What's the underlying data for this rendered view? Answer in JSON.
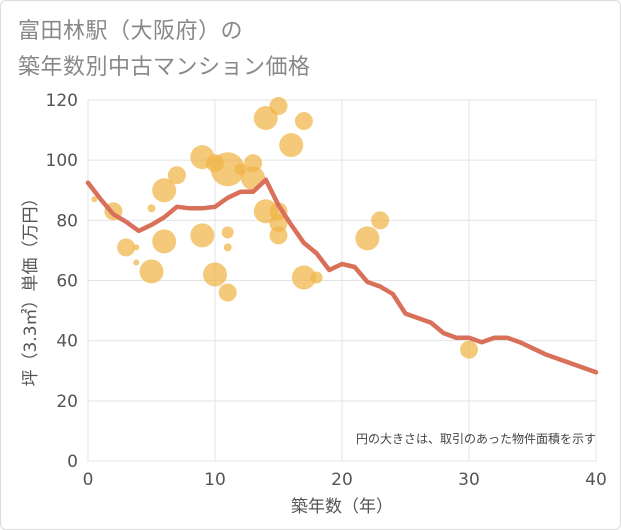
{
  "header": {
    "title_line1": "富田林駅（大阪府）の",
    "title_line2": "築年数別中古マンション価格"
  },
  "chart_data": {
    "type": "scatter",
    "xlabel": "築年数（年）",
    "ylabel": "坪（3.3㎡）単価（万円）",
    "xlim": [
      0,
      40
    ],
    "ylim": [
      0,
      120
    ],
    "x_ticks": [
      0,
      10,
      20,
      30,
      40
    ],
    "y_ticks": [
      0,
      20,
      40,
      60,
      80,
      100,
      120
    ],
    "grid": true,
    "note": "円の大きさは、取引のあった物件面積を示す",
    "bubble_color": "#f0b445",
    "line_color": "#d9705a",
    "bubbles": [
      {
        "x": 0.5,
        "y": 87,
        "s": 3
      },
      {
        "x": 2,
        "y": 83,
        "s": 9
      },
      {
        "x": 3,
        "y": 71,
        "s": 9
      },
      {
        "x": 3.8,
        "y": 71,
        "s": 3
      },
      {
        "x": 3.8,
        "y": 66,
        "s": 3
      },
      {
        "x": 5,
        "y": 84,
        "s": 4
      },
      {
        "x": 5,
        "y": 63,
        "s": 12
      },
      {
        "x": 6,
        "y": 90,
        "s": 12
      },
      {
        "x": 6,
        "y": 73,
        "s": 12
      },
      {
        "x": 7,
        "y": 95,
        "s": 9
      },
      {
        "x": 9,
        "y": 101,
        "s": 12
      },
      {
        "x": 9,
        "y": 75,
        "s": 12
      },
      {
        "x": 10,
        "y": 99,
        "s": 9
      },
      {
        "x": 10,
        "y": 62,
        "s": 12
      },
      {
        "x": 11,
        "y": 97,
        "s": 17
      },
      {
        "x": 11,
        "y": 76,
        "s": 6
      },
      {
        "x": 11,
        "y": 71,
        "s": 4
      },
      {
        "x": 11,
        "y": 56,
        "s": 9
      },
      {
        "x": 12,
        "y": 97,
        "s": 6
      },
      {
        "x": 13,
        "y": 99,
        "s": 9
      },
      {
        "x": 13,
        "y": 94,
        "s": 12
      },
      {
        "x": 14,
        "y": 114,
        "s": 12
      },
      {
        "x": 14,
        "y": 83,
        "s": 12
      },
      {
        "x": 15,
        "y": 118,
        "s": 9
      },
      {
        "x": 15,
        "y": 83,
        "s": 9
      },
      {
        "x": 15,
        "y": 79,
        "s": 9
      },
      {
        "x": 15,
        "y": 75,
        "s": 9
      },
      {
        "x": 16,
        "y": 105,
        "s": 12
      },
      {
        "x": 17,
        "y": 113,
        "s": 9
      },
      {
        "x": 17,
        "y": 61,
        "s": 12
      },
      {
        "x": 18,
        "y": 61,
        "s": 6
      },
      {
        "x": 22,
        "y": 74,
        "s": 12
      },
      {
        "x": 23,
        "y": 80,
        "s": 9
      },
      {
        "x": 30,
        "y": 37,
        "s": 9
      }
    ],
    "series": [
      {
        "x": [
          0,
          1,
          2,
          3,
          4,
          5,
          6,
          7,
          8,
          9,
          10,
          11,
          12,
          13,
          14,
          15,
          16,
          17,
          18,
          19,
          20,
          21,
          22,
          23,
          24,
          25,
          26,
          27,
          28,
          29,
          30,
          31,
          32,
          33,
          34,
          35,
          36,
          37,
          38,
          39,
          40
        ],
        "values": [
          92.5,
          87,
          82,
          79.5,
          76.5,
          78.5,
          81,
          84.5,
          84,
          84,
          84.5,
          87.5,
          89.5,
          89.5,
          93.5,
          85,
          78.5,
          72.5,
          69,
          63.5,
          65.5,
          64.5,
          59.5,
          58,
          55.5,
          49,
          47.5,
          46,
          42.5,
          41,
          41,
          39.5,
          41,
          41,
          39.5,
          37.5,
          35.5,
          34,
          32.5,
          31,
          29.5
        ]
      }
    ]
  }
}
